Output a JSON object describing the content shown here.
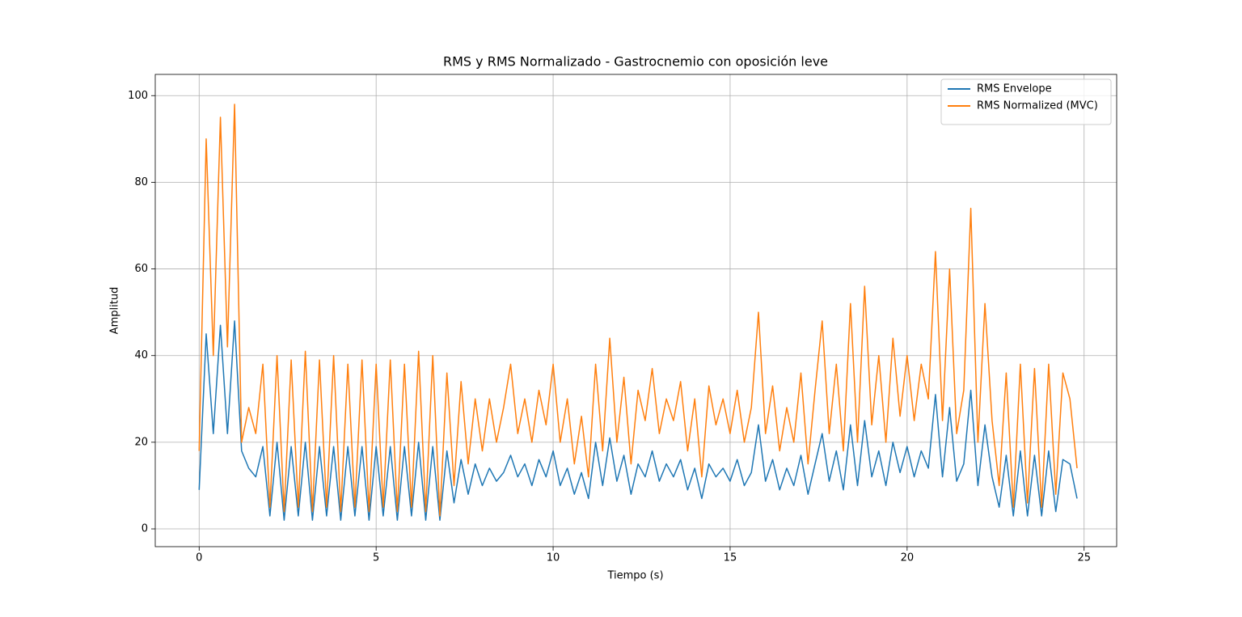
{
  "chart_data": {
    "type": "line",
    "title": "RMS y RMS Normalizado - Gastrocnemio con oposición leve",
    "xlabel": "Tiempo (s)",
    "ylabel": "Amplitud",
    "x": [
      0,
      0.2,
      0.4,
      0.6,
      0.8,
      1.0,
      1.2,
      1.4,
      1.6,
      1.8,
      2.0,
      2.2,
      2.4,
      2.6,
      2.8,
      3.0,
      3.2,
      3.4,
      3.6,
      3.8,
      4.0,
      4.2,
      4.4,
      4.6,
      4.8,
      5.0,
      5.2,
      5.4,
      5.6,
      5.8,
      6.0,
      6.2,
      6.4,
      6.6,
      6.8,
      7.0,
      7.2,
      7.4,
      7.6,
      7.8,
      8.0,
      8.2,
      8.4,
      8.6,
      8.8,
      9.0,
      9.2,
      9.4,
      9.6,
      9.8,
      10.0,
      10.2,
      10.4,
      10.6,
      10.8,
      11.0,
      11.2,
      11.4,
      11.6,
      11.8,
      12.0,
      12.2,
      12.4,
      12.6,
      12.8,
      13.0,
      13.2,
      13.4,
      13.6,
      13.8,
      14.0,
      14.2,
      14.4,
      14.6,
      14.8,
      15.0,
      15.2,
      15.4,
      15.6,
      15.8,
      16.0,
      16.2,
      16.4,
      16.6,
      16.8,
      17.0,
      17.2,
      17.4,
      17.6,
      17.8,
      18.0,
      18.2,
      18.4,
      18.6,
      18.8,
      19.0,
      19.2,
      19.4,
      19.6,
      19.8,
      20.0,
      20.2,
      20.4,
      20.6,
      20.8,
      21.0,
      21.2,
      21.4,
      21.6,
      21.8,
      22.0,
      22.2,
      22.4,
      22.6,
      22.8,
      23.0,
      23.2,
      23.4,
      23.6,
      23.8,
      24.0,
      24.2,
      24.4,
      24.6,
      24.8
    ],
    "series": [
      {
        "name": "RMS Envelope",
        "color": "#1f77b4",
        "values": [
          9,
          45,
          22,
          47,
          22,
          48,
          18,
          14,
          12,
          19,
          3,
          20,
          2,
          19,
          3,
          20,
          2,
          19,
          3,
          19,
          2,
          19,
          3,
          19,
          2,
          19,
          3,
          19,
          2,
          19,
          3,
          20,
          2,
          19,
          2,
          18,
          6,
          16,
          8,
          15,
          10,
          14,
          11,
          13,
          17,
          12,
          15,
          10,
          16,
          12,
          18,
          10,
          14,
          8,
          13,
          7,
          20,
          10,
          21,
          11,
          17,
          8,
          15,
          12,
          18,
          11,
          15,
          12,
          16,
          9,
          14,
          7,
          15,
          12,
          14,
          11,
          16,
          10,
          13,
          24,
          11,
          16,
          9,
          14,
          10,
          17,
          8,
          15,
          22,
          11,
          18,
          9,
          24,
          10,
          25,
          12,
          18,
          10,
          20,
          13,
          19,
          12,
          18,
          14,
          31,
          12,
          28,
          11,
          15,
          32,
          10,
          24,
          12,
          5,
          17,
          3,
          18,
          3,
          17,
          3,
          18,
          4,
          16,
          15,
          7
        ]
      },
      {
        "name": "RMS Normalized (MVC)",
        "color": "#ff7f0e",
        "values": [
          18,
          90,
          40,
          95,
          42,
          98,
          20,
          28,
          22,
          38,
          5,
          40,
          4,
          39,
          5,
          41,
          4,
          39,
          5,
          40,
          4,
          38,
          5,
          39,
          4,
          38,
          5,
          39,
          4,
          38,
          5,
          41,
          4,
          40,
          3,
          36,
          10,
          34,
          15,
          30,
          18,
          30,
          20,
          28,
          38,
          22,
          30,
          20,
          32,
          24,
          38,
          20,
          30,
          15,
          26,
          12,
          38,
          18,
          44,
          20,
          35,
          15,
          32,
          25,
          37,
          22,
          30,
          25,
          34,
          18,
          30,
          12,
          33,
          24,
          30,
          22,
          32,
          20,
          28,
          50,
          22,
          33,
          18,
          28,
          20,
          36,
          15,
          32,
          48,
          22,
          38,
          18,
          52,
          20,
          56,
          24,
          40,
          20,
          44,
          26,
          40,
          25,
          38,
          30,
          64,
          25,
          60,
          22,
          32,
          74,
          20,
          52,
          25,
          10,
          36,
          5,
          38,
          6,
          37,
          5,
          38,
          8,
          36,
          30,
          14
        ]
      }
    ],
    "xlim": [
      -1.24,
      25.92
    ],
    "ylim": [
      -4.1,
      104.9
    ],
    "xticks": [
      0,
      5,
      10,
      15,
      20,
      25
    ],
    "yticks": [
      0,
      20,
      40,
      60,
      80,
      100
    ],
    "grid": true,
    "legend": "upper right"
  }
}
